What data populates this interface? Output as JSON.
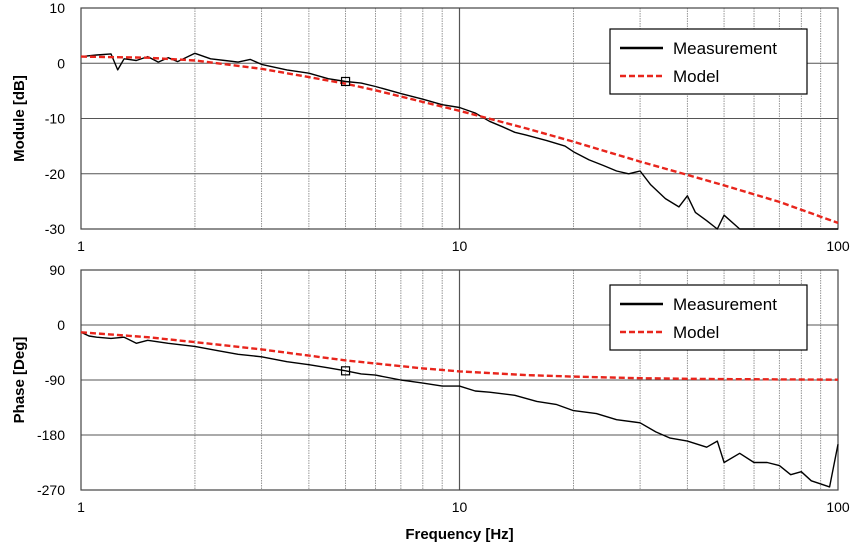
{
  "chart_data": [
    {
      "type": "line",
      "title": "",
      "xlabel": "",
      "ylabel": "Module [dB]",
      "x_scale": "log",
      "xlim": [
        1,
        100
      ],
      "ylim": [
        -30,
        10
      ],
      "grid": true,
      "x_tick_labels": [
        "1",
        "10",
        "100"
      ],
      "y_tick_labels": [
        "10",
        "0",
        "-10",
        "-20",
        "-30"
      ],
      "legend": {
        "position": "top-right",
        "entries": [
          "Measurement",
          "Model"
        ]
      },
      "series": [
        {
          "name": "Measurement",
          "color": "#000000",
          "style": "solid",
          "x": [
            1,
            1.1,
            1.2,
            1.25,
            1.3,
            1.4,
            1.5,
            1.6,
            1.7,
            1.8,
            2,
            2.2,
            2.4,
            2.6,
            2.8,
            3,
            3.5,
            4,
            4.5,
            5,
            5.5,
            6,
            7,
            8,
            9,
            10,
            11,
            12,
            13,
            14,
            15,
            17,
            19,
            20,
            22,
            24,
            26,
            28,
            30,
            32,
            35,
            38,
            40,
            42,
            45,
            48,
            50,
            55,
            60,
            70,
            80,
            90,
            100
          ],
          "y": [
            1.2,
            1.5,
            1.7,
            -1.2,
            0.8,
            0.5,
            1.2,
            0.2,
            1.0,
            0.3,
            1.8,
            0.8,
            0.5,
            0.2,
            0.7,
            -0.2,
            -1.2,
            -1.8,
            -2.8,
            -3.3,
            -3.6,
            -4.2,
            -5.5,
            -6.5,
            -7.5,
            -8.0,
            -9.0,
            -10.5,
            -11.5,
            -12.5,
            -13.0,
            -14.0,
            -15.0,
            -16.0,
            -17.5,
            -18.5,
            -19.5,
            -20.0,
            -19.5,
            -22.0,
            -24.5,
            -26.0,
            -24.0,
            -27.0,
            -28.5,
            -30.0,
            -27.5,
            -30.0,
            -30.0,
            -30.0,
            -30.0,
            -30.0,
            -30.0
          ]
        },
        {
          "name": "Model",
          "color": "#e8251c",
          "style": "dashed",
          "x": [
            1,
            1.5,
            2,
            3,
            4,
            5,
            6,
            8,
            10,
            15,
            20,
            30,
            40,
            50,
            70,
            100
          ],
          "y": [
            1.2,
            1.0,
            0.5,
            -1.0,
            -2.5,
            -3.7,
            -4.9,
            -7.0,
            -8.6,
            -11.8,
            -14.2,
            -17.8,
            -20.2,
            -22.1,
            -25.1,
            -28.9
          ]
        }
      ],
      "annotations": [
        {
          "type": "square-marker",
          "x": 5,
          "y": -3.3
        }
      ]
    },
    {
      "type": "line",
      "title": "",
      "xlabel": "Frequency [Hz]",
      "ylabel": "Phase [Deg]",
      "x_scale": "log",
      "xlim": [
        1,
        100
      ],
      "ylim": [
        -270,
        90
      ],
      "grid": true,
      "x_tick_labels": [
        "1",
        "10",
        "100"
      ],
      "y_tick_labels": [
        "90",
        "0",
        "-90",
        "-180",
        "-270"
      ],
      "legend": {
        "position": "top-right",
        "entries": [
          "Measurement",
          "Model"
        ]
      },
      "series": [
        {
          "name": "Measurement",
          "color": "#000000",
          "style": "solid",
          "x": [
            1,
            1.05,
            1.1,
            1.2,
            1.3,
            1.4,
            1.5,
            1.7,
            2,
            2.3,
            2.6,
            3,
            3.5,
            4,
            4.5,
            5,
            5.5,
            6,
            7,
            8,
            9,
            10,
            11,
            12,
            14,
            16,
            18,
            20,
            23,
            26,
            30,
            33,
            36,
            40,
            45,
            48,
            50,
            55,
            60,
            65,
            70,
            75,
            80,
            85,
            90,
            95,
            100
          ],
          "y": [
            -12,
            -18,
            -20,
            -22,
            -20,
            -30,
            -25,
            -30,
            -35,
            -42,
            -48,
            -52,
            -60,
            -65,
            -70,
            -75,
            -80,
            -82,
            -90,
            -95,
            -100,
            -100,
            -108,
            -110,
            -115,
            -125,
            -130,
            -140,
            -145,
            -155,
            -160,
            -175,
            -185,
            -190,
            -200,
            -190,
            -225,
            -210,
            -225,
            -225,
            -230,
            -245,
            -240,
            -255,
            -260,
            -265,
            -195
          ]
        },
        {
          "name": "Model",
          "color": "#e8251c",
          "style": "dashed",
          "x": [
            1,
            1.5,
            2,
            3,
            4,
            5,
            6,
            8,
            10,
            15,
            20,
            30,
            40,
            50,
            70,
            100
          ],
          "y": [
            -12,
            -20,
            -28,
            -40,
            -50,
            -58,
            -63,
            -71,
            -76,
            -82,
            -84.5,
            -87,
            -88,
            -88.6,
            -89,
            -89.5
          ]
        }
      ],
      "annotations": [
        {
          "type": "square-marker",
          "x": 5,
          "y": -75
        }
      ]
    }
  ]
}
